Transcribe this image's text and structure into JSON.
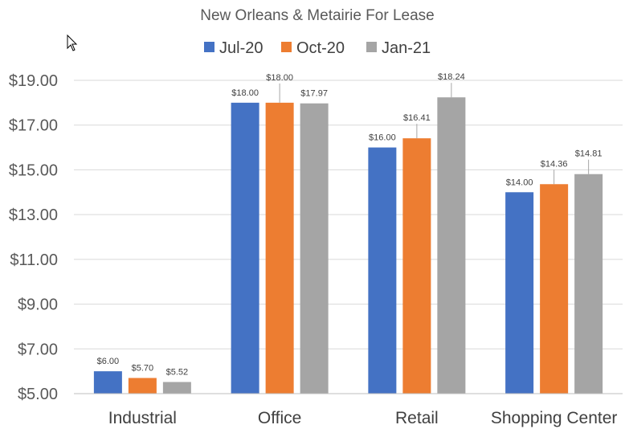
{
  "chart_data": {
    "type": "bar",
    "title": "New Orleans & Metairie For Lease",
    "categories": [
      "Industrial",
      "Office",
      "Retail",
      "Shopping Center"
    ],
    "series": [
      {
        "name": "Jul-20",
        "color": "#4472C4",
        "values": [
          6.0,
          18.0,
          16.0,
          14.0
        ],
        "labels": [
          "$6.00",
          "$18.00",
          "$16.00",
          "$14.00"
        ]
      },
      {
        "name": "Oct-20",
        "color": "#ED7D31",
        "values": [
          5.7,
          18.0,
          16.41,
          14.36
        ],
        "labels": [
          "$5.70",
          "$18.00",
          "$16.41",
          "$14.36"
        ]
      },
      {
        "name": "Jan-21",
        "color": "#A5A5A5",
        "values": [
          5.52,
          17.97,
          18.24,
          14.81
        ],
        "labels": [
          "$5.52",
          "$17.97",
          "$18.24",
          "$14.81"
        ]
      }
    ],
    "yticks": [
      "$5.00",
      "$7.00",
      "$9.00",
      "$11.00",
      "$13.00",
      "$15.00",
      "$17.00",
      "$19.00"
    ],
    "ytick_values": [
      5,
      7,
      9,
      11,
      13,
      15,
      17,
      19
    ],
    "ylim": [
      5,
      19
    ],
    "grid": true,
    "legend_position": "top"
  }
}
